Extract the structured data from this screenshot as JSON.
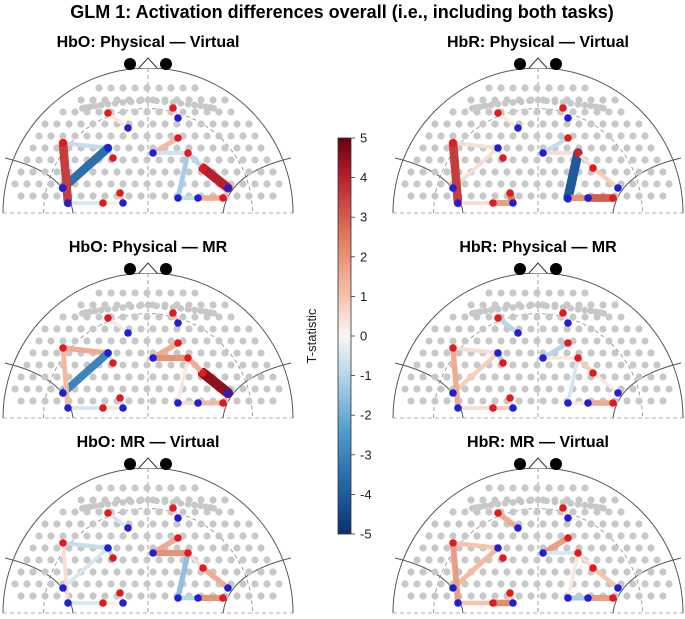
{
  "figure_title": "GLM 1: Activation differences overall (i.e., including both tasks)",
  "chart_data": {
    "type": "heatmap",
    "title": "GLM 1: Activation differences overall (i.e., including both tasks)",
    "colorbar": {
      "label": "T-statistic",
      "range": [
        -5,
        5
      ],
      "ticks": [
        5,
        4,
        3,
        2,
        1,
        0,
        -1,
        -2,
        -3,
        -4,
        -5
      ],
      "ticks_text": [
        "5",
        "4",
        "3",
        "2",
        "1",
        "0",
        "-1",
        "-2",
        "-3",
        "-4",
        "-5"
      ],
      "low_color": "#08306b",
      "mid_color": "#ffffff",
      "high_color": "#67000d"
    },
    "panels": [
      {
        "title": "HbO: Physical — Virtual",
        "channels": [
          {
            "channel": "L1",
            "t": 0.3
          },
          {
            "channel": "L2",
            "t": -0.5
          },
          {
            "channel": "L3",
            "t": -0.8
          },
          {
            "channel": "L4",
            "t": -3.5
          },
          {
            "channel": "L5",
            "t": 3.5
          },
          {
            "channel": "L6",
            "t": -0.5
          },
          {
            "channel": "L7",
            "t": 0.2
          },
          {
            "channel": "L8",
            "t": 1.0
          },
          {
            "channel": "R1",
            "t": 0.5
          },
          {
            "channel": "R2",
            "t": 1.2
          },
          {
            "channel": "R3",
            "t": -0.6
          },
          {
            "channel": "R4",
            "t": -1.2
          },
          {
            "channel": "R5",
            "t": 4.0
          },
          {
            "channel": "R6",
            "t": 1.5
          },
          {
            "channel": "R7",
            "t": -0.8
          },
          {
            "channel": "R8",
            "t": -1.0
          }
        ]
      },
      {
        "title": "HbR: Physical — Virtual",
        "channels": [
          {
            "channel": "L1",
            "t": 0.3
          },
          {
            "channel": "L2",
            "t": -0.5
          },
          {
            "channel": "L3",
            "t": 0.5
          },
          {
            "channel": "L4",
            "t": 0.5
          },
          {
            "channel": "L5",
            "t": 3.5
          },
          {
            "channel": "L6",
            "t": 0.5
          },
          {
            "channel": "L7",
            "t": 1.8
          },
          {
            "channel": "L8",
            "t": 2.5
          },
          {
            "channel": "R1",
            "t": -0.3
          },
          {
            "channel": "R2",
            "t": -0.8
          },
          {
            "channel": "R3",
            "t": 0.5
          },
          {
            "channel": "R4",
            "t": -4.0
          },
          {
            "channel": "R5",
            "t": 0.8
          },
          {
            "channel": "R6",
            "t": 3.0
          },
          {
            "channel": "R7",
            "t": 2.0
          },
          {
            "channel": "R8",
            "t": 0.5
          }
        ]
      },
      {
        "title": "HbO: Physical — MR",
        "channels": [
          {
            "channel": "L1",
            "t": 0.3
          },
          {
            "channel": "L2",
            "t": -0.5
          },
          {
            "channel": "L3",
            "t": 1.5
          },
          {
            "channel": "L4",
            "t": -3.0
          },
          {
            "channel": "L5",
            "t": 1.2
          },
          {
            "channel": "L6",
            "t": -0.5
          },
          {
            "channel": "L7",
            "t": 0.3
          },
          {
            "channel": "L8",
            "t": -0.8
          },
          {
            "channel": "R1",
            "t": 1.0
          },
          {
            "channel": "R2",
            "t": 1.5
          },
          {
            "channel": "R3",
            "t": 2.0
          },
          {
            "channel": "R4",
            "t": 0.3
          },
          {
            "channel": "R5",
            "t": 4.5
          },
          {
            "channel": "R6",
            "t": 1.2
          },
          {
            "channel": "R7",
            "t": 0.5
          },
          {
            "channel": "R8",
            "t": 1.5
          }
        ]
      },
      {
        "title": "HbR: Physical — MR",
        "channels": [
          {
            "channel": "L1",
            "t": -1.0
          },
          {
            "channel": "L2",
            "t": -1.2
          },
          {
            "channel": "L3",
            "t": 0.5
          },
          {
            "channel": "L4",
            "t": 0.8
          },
          {
            "channel": "L5",
            "t": 1.5
          },
          {
            "channel": "L6",
            "t": 0.5
          },
          {
            "channel": "L7",
            "t": 0.8
          },
          {
            "channel": "L8",
            "t": 0.5
          },
          {
            "channel": "R1",
            "t": -0.5
          },
          {
            "channel": "R2",
            "t": -1.0
          },
          {
            "channel": "R3",
            "t": 0.3
          },
          {
            "channel": "R4",
            "t": -0.5
          },
          {
            "channel": "R5",
            "t": 0.3
          },
          {
            "channel": "R6",
            "t": 1.5
          },
          {
            "channel": "R7",
            "t": 0.3
          },
          {
            "channel": "R8",
            "t": 0.8
          }
        ]
      },
      {
        "title": "HbO: MR — Virtual",
        "channels": [
          {
            "channel": "L1",
            "t": -0.5
          },
          {
            "channel": "L2",
            "t": -1.0
          },
          {
            "channel": "L3",
            "t": -0.8
          },
          {
            "channel": "L4",
            "t": -0.5
          },
          {
            "channel": "L5",
            "t": 0.5
          },
          {
            "channel": "L6",
            "t": -0.5
          },
          {
            "channel": "L7",
            "t": 0.2
          },
          {
            "channel": "L8",
            "t": -0.5
          },
          {
            "channel": "R1",
            "t": 0.5
          },
          {
            "channel": "R2",
            "t": 1.5
          },
          {
            "channel": "R3",
            "t": 2.0
          },
          {
            "channel": "R4",
            "t": -1.5
          },
          {
            "channel": "R5",
            "t": 1.5
          },
          {
            "channel": "R6",
            "t": 2.0
          },
          {
            "channel": "R7",
            "t": -1.0
          },
          {
            "channel": "R8",
            "t": 0.5
          }
        ]
      },
      {
        "title": "HbR: MR — Virtual",
        "channels": [
          {
            "channel": "L1",
            "t": 1.5
          },
          {
            "channel": "L2",
            "t": 0.3
          },
          {
            "channel": "L3",
            "t": 1.0
          },
          {
            "channel": "L4",
            "t": 1.2
          },
          {
            "channel": "L5",
            "t": 1.8
          },
          {
            "channel": "L6",
            "t": 1.0
          },
          {
            "channel": "L7",
            "t": 2.2
          },
          {
            "channel": "L8",
            "t": 1.0
          },
          {
            "channel": "R1",
            "t": 0.5
          },
          {
            "channel": "R2",
            "t": 1.8
          },
          {
            "channel": "R3",
            "t": -0.5
          },
          {
            "channel": "R4",
            "t": 0.3
          },
          {
            "channel": "R5",
            "t": 1.0
          },
          {
            "channel": "R6",
            "t": 1.8
          },
          {
            "channel": "R7",
            "t": -1.2
          },
          {
            "channel": "R8",
            "t": 0.5
          }
        ]
      }
    ]
  }
}
